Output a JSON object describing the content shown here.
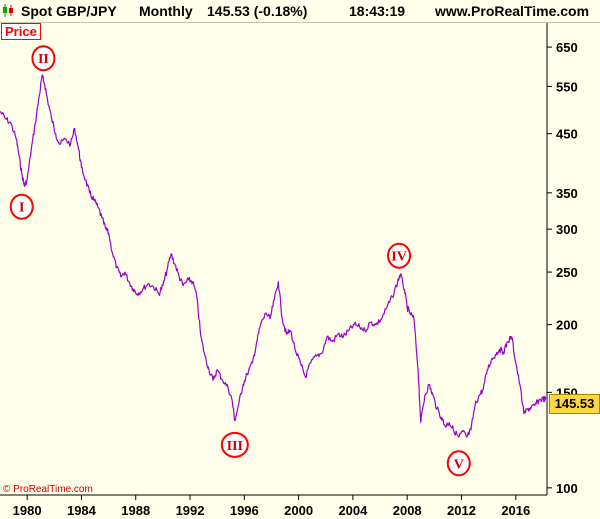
{
  "header": {
    "title": "Spot GBP/JPY",
    "period": "Monthly",
    "last": "145.53 (-0.18%)",
    "time": "18:43:19",
    "site": "www.ProRealTime.com"
  },
  "price_tag": "Price",
  "copyright": "© ProRealTime.com",
  "current_price": "145.53",
  "colors": {
    "line": "#9900cc",
    "circle": "#ff0000",
    "badge": "#ffd740",
    "background": "#ffffea"
  },
  "icons": [
    "candlestick-chart-icon"
  ],
  "chart_data": {
    "type": "line",
    "title": "Spot GBP/JPY",
    "scale": "log",
    "ylim": [
      97,
      720
    ],
    "xlim": [
      1978.0,
      2018.3
    ],
    "y_ticks": [
      650,
      550,
      450,
      350,
      300,
      250,
      200,
      150,
      100
    ],
    "y_tick_labels": [
      "650",
      "550",
      "450",
      "350",
      "300",
      "250",
      "200",
      "150",
      "100"
    ],
    "x_ticks": [
      1980,
      1984,
      1988,
      1992,
      1996,
      2000,
      2004,
      2008,
      2012,
      2016
    ],
    "x_tick_labels": [
      "1980",
      "1984",
      "1988",
      "1992",
      "1996",
      "2000",
      "2004",
      "2008",
      "2012",
      "2016"
    ],
    "grid": false,
    "series": [
      {
        "points": [
          [
            1978.0,
            495
          ],
          [
            1978.4,
            480
          ],
          [
            1978.8,
            470
          ],
          [
            1979.2,
            440
          ],
          [
            1979.4,
            410
          ],
          [
            1979.6,
            380
          ],
          [
            1979.8,
            360
          ],
          [
            1980.0,
            370
          ],
          [
            1980.3,
            420
          ],
          [
            1980.6,
            470
          ],
          [
            1980.9,
            530
          ],
          [
            1981.1,
            575
          ],
          [
            1981.3,
            555
          ],
          [
            1981.5,
            520
          ],
          [
            1981.8,
            480
          ],
          [
            1982.1,
            450
          ],
          [
            1982.4,
            430
          ],
          [
            1982.8,
            440
          ],
          [
            1983.2,
            430
          ],
          [
            1983.5,
            460
          ],
          [
            1983.8,
            420
          ],
          [
            1984.0,
            390
          ],
          [
            1984.3,
            370
          ],
          [
            1984.6,
            350
          ],
          [
            1984.9,
            340
          ],
          [
            1985.2,
            330
          ],
          [
            1985.5,
            315
          ],
          [
            1985.8,
            300
          ],
          [
            1986.0,
            295
          ],
          [
            1986.3,
            270
          ],
          [
            1986.6,
            255
          ],
          [
            1986.9,
            245
          ],
          [
            1987.2,
            250
          ],
          [
            1987.5,
            240
          ],
          [
            1987.8,
            233
          ],
          [
            1988.1,
            228
          ],
          [
            1988.5,
            232
          ],
          [
            1988.9,
            238
          ],
          [
            1989.3,
            235
          ],
          [
            1989.7,
            228
          ],
          [
            1990.0,
            236
          ],
          [
            1990.3,
            252
          ],
          [
            1990.6,
            270
          ],
          [
            1990.9,
            258
          ],
          [
            1991.2,
            245
          ],
          [
            1991.5,
            236
          ],
          [
            1991.9,
            242
          ],
          [
            1992.2,
            240
          ],
          [
            1992.5,
            225
          ],
          [
            1992.8,
            190
          ],
          [
            1993.1,
            175
          ],
          [
            1993.4,
            165
          ],
          [
            1993.7,
            158
          ],
          [
            1994.0,
            165
          ],
          [
            1994.4,
            158
          ],
          [
            1994.8,
            153
          ],
          [
            1995.1,
            145
          ],
          [
            1995.3,
            133
          ],
          [
            1995.6,
            143
          ],
          [
            1995.9,
            155
          ],
          [
            1996.2,
            162
          ],
          [
            1996.6,
            170
          ],
          [
            1996.9,
            185
          ],
          [
            1997.2,
            200
          ],
          [
            1997.6,
            210
          ],
          [
            1997.9,
            205
          ],
          [
            1998.2,
            222
          ],
          [
            1998.5,
            240
          ],
          [
            1998.8,
            205
          ],
          [
            1999.1,
            192
          ],
          [
            1999.4,
            195
          ],
          [
            1999.8,
            178
          ],
          [
            2000.2,
            168
          ],
          [
            2000.5,
            160
          ],
          [
            2000.9,
            170
          ],
          [
            2001.3,
            175
          ],
          [
            2001.7,
            177
          ],
          [
            2002.1,
            190
          ],
          [
            2002.5,
            186
          ],
          [
            2002.9,
            192
          ],
          [
            2003.3,
            190
          ],
          [
            2003.7,
            195
          ],
          [
            2004.1,
            200
          ],
          [
            2004.5,
            198
          ],
          [
            2004.9,
            195
          ],
          [
            2005.3,
            202
          ],
          [
            2005.7,
            200
          ],
          [
            2006.1,
            205
          ],
          [
            2006.5,
            215
          ],
          [
            2006.9,
            225
          ],
          [
            2007.3,
            240
          ],
          [
            2007.5,
            248
          ],
          [
            2007.8,
            232
          ],
          [
            2008.0,
            215
          ],
          [
            2008.2,
            210
          ],
          [
            2008.5,
            205
          ],
          [
            2008.8,
            165
          ],
          [
            2009.0,
            132
          ],
          [
            2009.3,
            148
          ],
          [
            2009.6,
            155
          ],
          [
            2009.9,
            148
          ],
          [
            2010.2,
            140
          ],
          [
            2010.5,
            135
          ],
          [
            2010.8,
            130
          ],
          [
            2011.1,
            132
          ],
          [
            2011.4,
            128
          ],
          [
            2011.8,
            124
          ],
          [
            2012.1,
            127
          ],
          [
            2012.4,
            124
          ],
          [
            2012.7,
            128
          ],
          [
            2013.0,
            142
          ],
          [
            2013.3,
            148
          ],
          [
            2013.6,
            152
          ],
          [
            2013.9,
            165
          ],
          [
            2014.2,
            172
          ],
          [
            2014.5,
            176
          ],
          [
            2014.8,
            180
          ],
          [
            2015.1,
            178
          ],
          [
            2015.4,
            186
          ],
          [
            2015.7,
            190
          ],
          [
            2016.0,
            170
          ],
          [
            2016.3,
            155
          ],
          [
            2016.6,
            137
          ],
          [
            2016.9,
            140
          ],
          [
            2017.1,
            140
          ],
          [
            2017.4,
            142
          ],
          [
            2017.7,
            145
          ],
          [
            2018.0,
            146
          ],
          [
            2018.2,
            145.53
          ]
        ]
      }
    ],
    "annotations": [
      {
        "label": "I",
        "x": 1979.6,
        "y": 330
      },
      {
        "label": "II",
        "x": 1981.2,
        "y": 620
      },
      {
        "label": "III",
        "x": 1995.3,
        "y": 120
      },
      {
        "label": "IV",
        "x": 2007.4,
        "y": 268
      },
      {
        "label": "V",
        "x": 2011.8,
        "y": 111
      }
    ]
  }
}
